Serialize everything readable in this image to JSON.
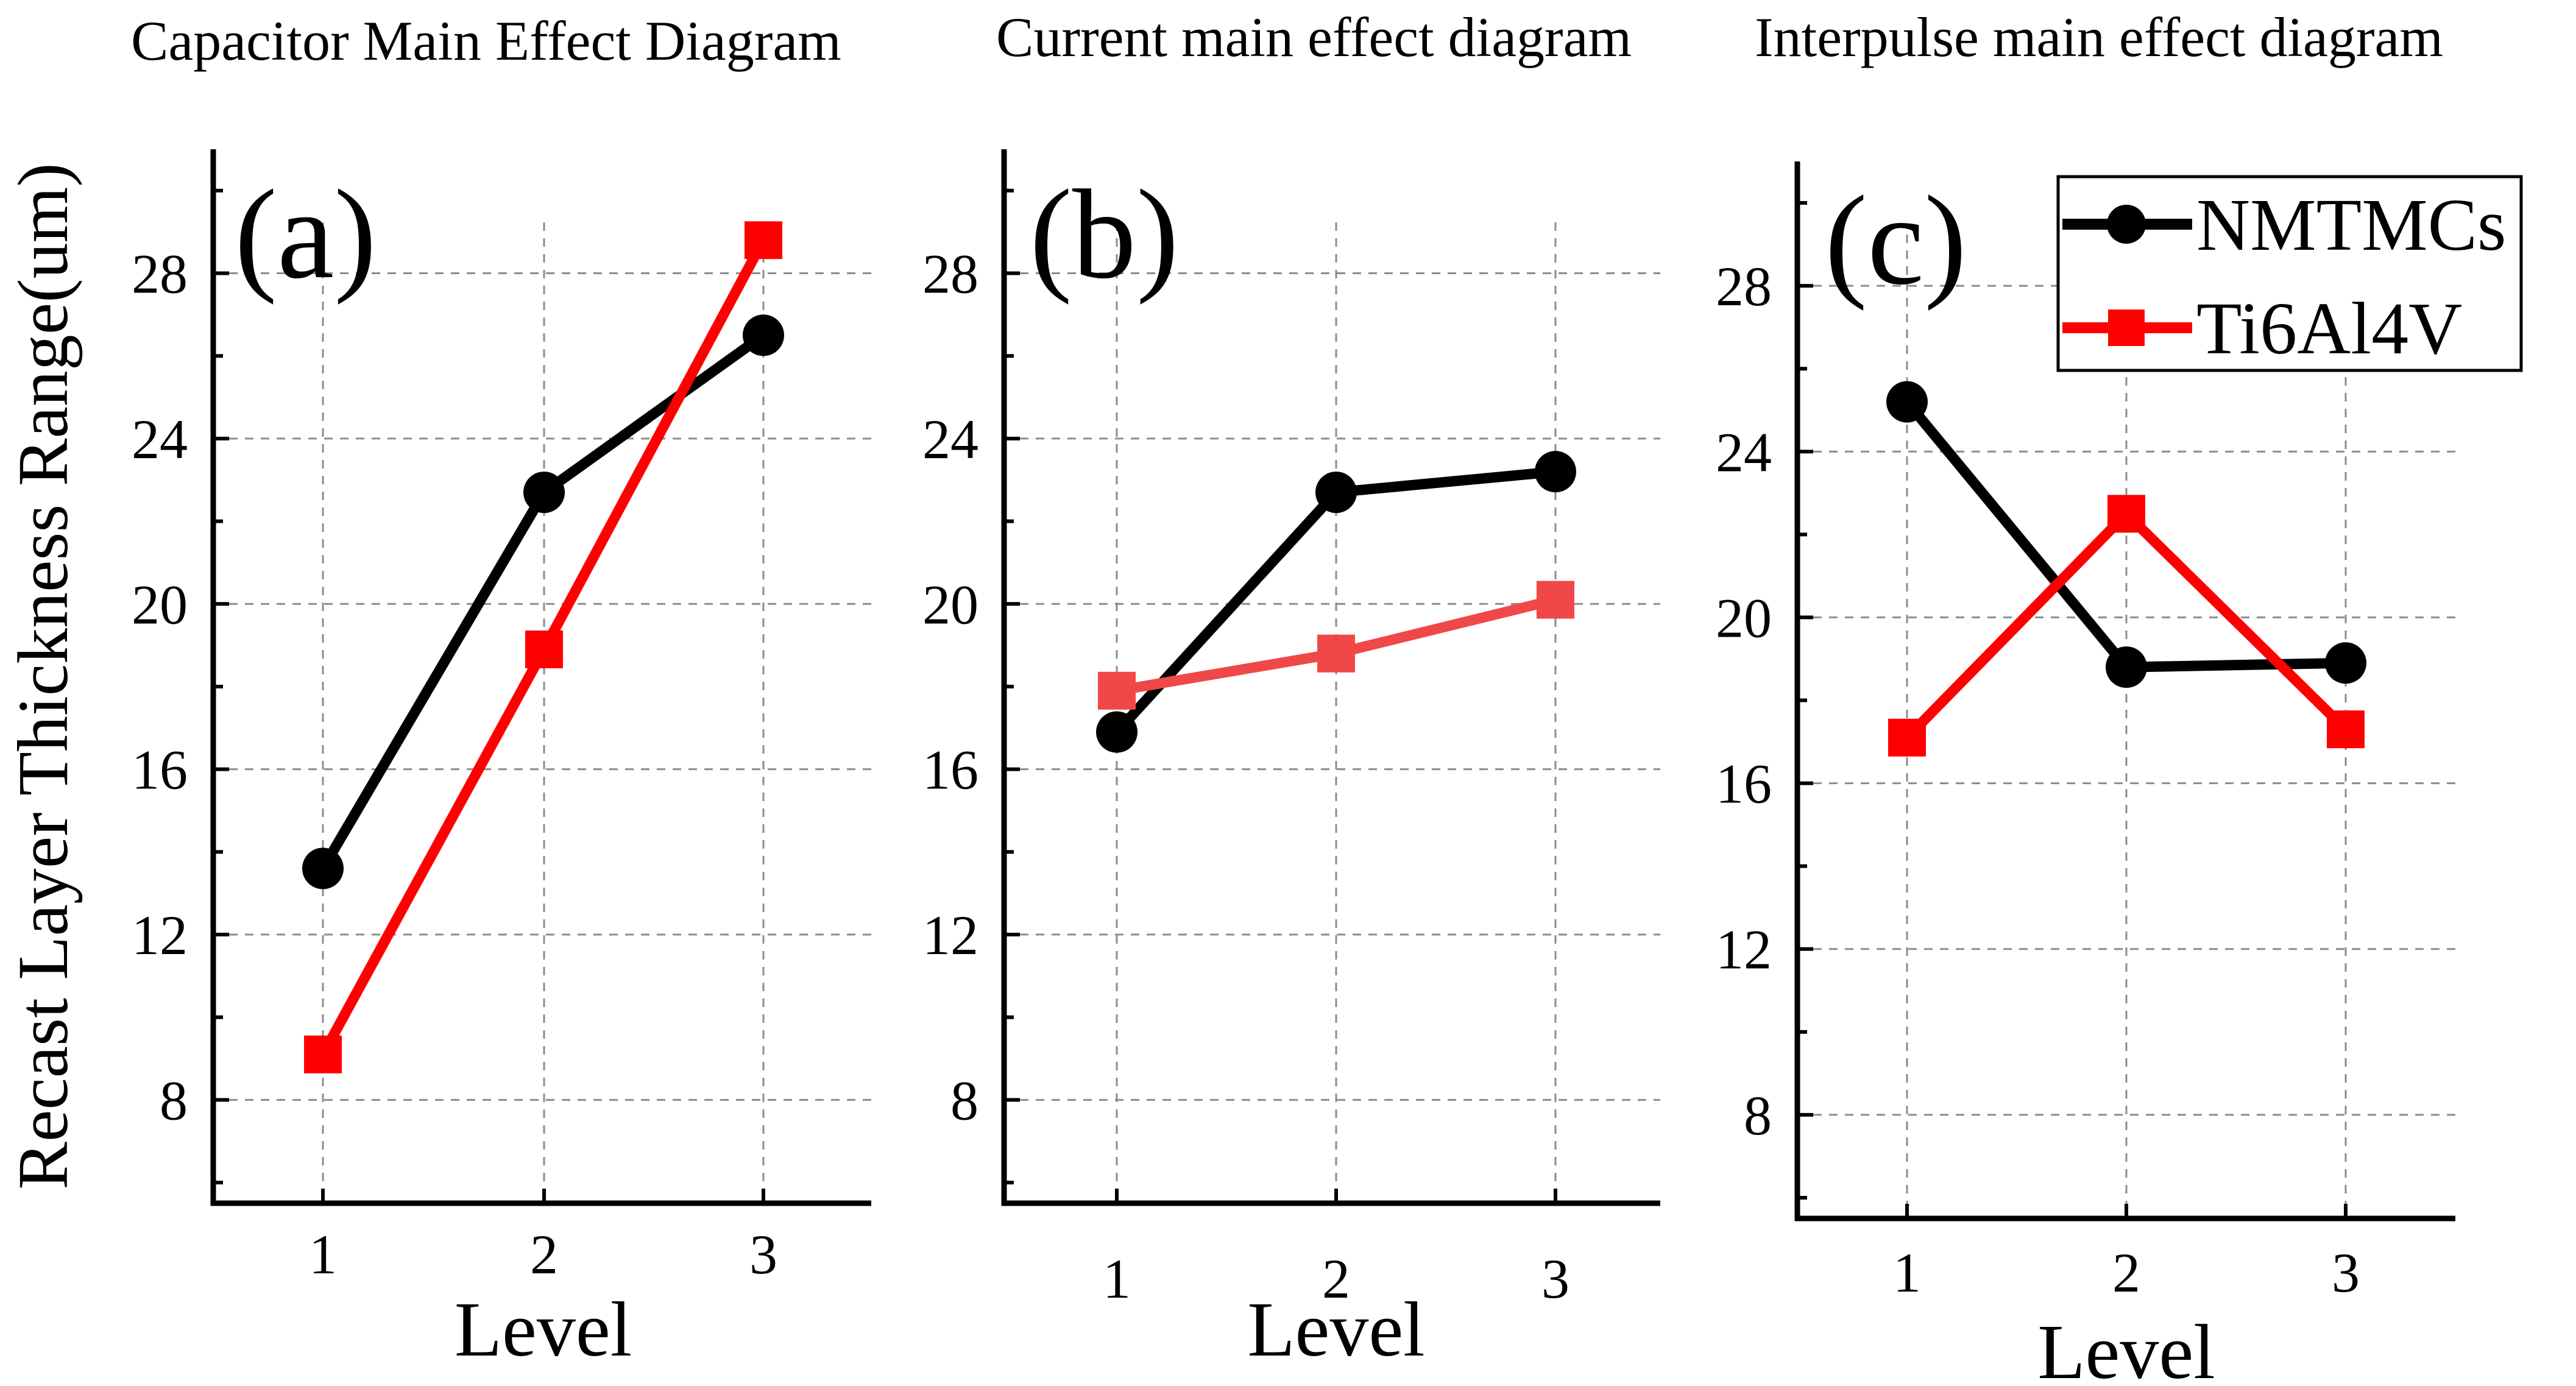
{
  "colors": {
    "NMTMCs": "#000000",
    "Ti6Al4V": "#ff0000",
    "Ti6Al4V_b": "#f04848"
  },
  "y_axis_title": "Recast Layer Thickness Range(um)",
  "chart_data": [
    {
      "type": "line",
      "title": "Capacitor Main Effect Diagram",
      "panel_label": "(a)",
      "xlabel": "Level",
      "ylabel": "Recast Layer Thickness Range(um)",
      "x": [
        1,
        2,
        3
      ],
      "xticks": [
        "1",
        "2",
        "3"
      ],
      "yticks": [
        "8",
        "12",
        "16",
        "20",
        "24",
        "28"
      ],
      "xlim": [
        0.5,
        3.5
      ],
      "ylim": [
        5.5,
        31
      ],
      "series": [
        {
          "name": "NMTMCs",
          "marker": "circle",
          "values": [
            13.6,
            22.7,
            26.5
          ]
        },
        {
          "name": "Ti6Al4V",
          "marker": "square",
          "values": [
            9.1,
            18.9,
            28.8
          ]
        }
      ]
    },
    {
      "type": "line",
      "title": "Current main effect diagram",
      "panel_label": "(b)",
      "xlabel": "Level",
      "ylabel": "Recast Layer Thickness Range(um)",
      "x": [
        1,
        2,
        3
      ],
      "xticks": [
        "1",
        "2",
        "3"
      ],
      "yticks": [
        "8",
        "12",
        "16",
        "20",
        "24",
        "28"
      ],
      "xlim": [
        0.5,
        3.5
      ],
      "ylim": [
        5.5,
        31
      ],
      "series": [
        {
          "name": "NMTMCs",
          "marker": "circle",
          "values": [
            16.9,
            22.7,
            23.2
          ]
        },
        {
          "name": "Ti6Al4V",
          "marker": "square",
          "values": [
            17.9,
            18.8,
            20.1
          ]
        }
      ]
    },
    {
      "type": "line",
      "title": "Interpulse main effect diagram",
      "panel_label": "(c)",
      "xlabel": "Level",
      "ylabel": "Recast Layer Thickness Range(um)",
      "x": [
        1,
        2,
        3
      ],
      "xticks": [
        "1",
        "2",
        "3"
      ],
      "yticks": [
        "8",
        "12",
        "16",
        "20",
        "24",
        "28"
      ],
      "xlim": [
        0.5,
        3.5
      ],
      "ylim": [
        5.5,
        31
      ],
      "legend": {
        "position": "top-right",
        "entries": [
          "NMTMCs",
          "Ti6Al4V"
        ]
      },
      "series": [
        {
          "name": "NMTMCs",
          "marker": "circle",
          "values": [
            25.2,
            18.8,
            18.9
          ]
        },
        {
          "name": "Ti6Al4V",
          "marker": "square",
          "values": [
            17.1,
            22.5,
            17.3
          ]
        }
      ]
    }
  ]
}
